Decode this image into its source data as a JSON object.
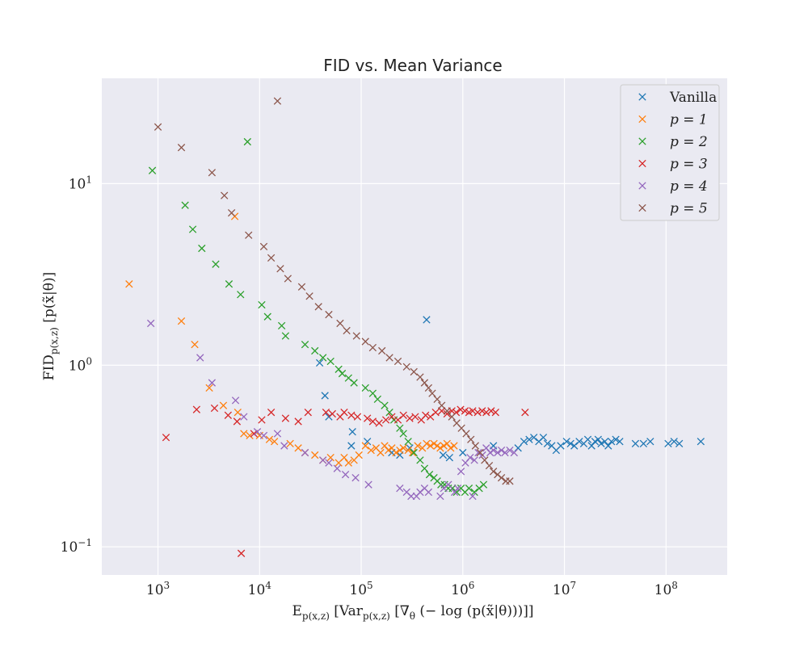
{
  "chart_data": {
    "type": "scatter",
    "title": "FID vs. Mean Variance",
    "xlabel": "E_{p(x,z)} [Var_{p(x,z)} [∇_θ (− log (p(x̃|θ)))]]",
    "ylabel": "FID_{p(x,z)} [p(x̃|θ)]",
    "xscale": "log",
    "yscale": "log",
    "xlim": [
      280,
      400000000
    ],
    "ylim": [
      0.07,
      38
    ],
    "grid": true,
    "legend_position": "top-right",
    "x_ticks": [
      {
        "value": 1000,
        "base": "10",
        "exp": "3"
      },
      {
        "value": 10000,
        "base": "10",
        "exp": "4"
      },
      {
        "value": 100000,
        "base": "10",
        "exp": "5"
      },
      {
        "value": 1000000,
        "base": "10",
        "exp": "6"
      },
      {
        "value": 10000000,
        "base": "10",
        "exp": "7"
      },
      {
        "value": 100000000,
        "base": "10",
        "exp": "8"
      }
    ],
    "y_ticks": [
      {
        "value": 0.1,
        "base": "10",
        "exp": "−1"
      },
      {
        "value": 1,
        "base": "10",
        "exp": "0"
      },
      {
        "value": 10,
        "base": "10",
        "exp": "1"
      }
    ],
    "series": [
      {
        "name": "Vanilla",
        "color": "#1f77b4",
        "points": [
          [
            39000,
            1.03
          ],
          [
            44000,
            0.68
          ],
          [
            48000,
            0.52
          ],
          [
            80000,
            0.36
          ],
          [
            82000,
            0.43
          ],
          [
            115000,
            0.38
          ],
          [
            200000,
            0.33
          ],
          [
            240000,
            0.32
          ],
          [
            300000,
            0.35
          ],
          [
            440000,
            1.78
          ],
          [
            640000,
            0.32
          ],
          [
            740000,
            0.31
          ],
          [
            1000000,
            0.33
          ],
          [
            2000000,
            0.36
          ],
          [
            3500000,
            0.35
          ],
          [
            4000000,
            0.38
          ],
          [
            4500000,
            0.39
          ],
          [
            5000000,
            0.4
          ],
          [
            5600000,
            0.38
          ],
          [
            6200000,
            0.4
          ],
          [
            6800000,
            0.37
          ],
          [
            7500000,
            0.36
          ],
          [
            8300000,
            0.34
          ],
          [
            9200000,
            0.36
          ],
          [
            10500000,
            0.38
          ],
          [
            11500000,
            0.37
          ],
          [
            12500000,
            0.36
          ],
          [
            14000000,
            0.38
          ],
          [
            15500000,
            0.37
          ],
          [
            17000000,
            0.39
          ],
          [
            18500000,
            0.36
          ],
          [
            20000000,
            0.38
          ],
          [
            21500000,
            0.39
          ],
          [
            23000000,
            0.37
          ],
          [
            25000000,
            0.38
          ],
          [
            27000000,
            0.36
          ],
          [
            29000000,
            0.38
          ],
          [
            32000000,
            0.39
          ],
          [
            35000000,
            0.38
          ],
          [
            50000000,
            0.37
          ],
          [
            60000000,
            0.37
          ],
          [
            70000000,
            0.38
          ],
          [
            105000000,
            0.37
          ],
          [
            120000000,
            0.38
          ],
          [
            135000000,
            0.37
          ],
          [
            220000000,
            0.38
          ]
        ]
      },
      {
        "name": "p = 1",
        "color": "#ff7f0e",
        "points": [
          [
            520,
            2.8
          ],
          [
            1700,
            1.75
          ],
          [
            2300,
            1.3
          ],
          [
            3200,
            0.75
          ],
          [
            4400,
            0.6
          ],
          [
            5700,
            6.6
          ],
          [
            6100,
            0.55
          ],
          [
            7000,
            0.42
          ],
          [
            8000,
            0.41
          ],
          [
            10000,
            0.41
          ],
          [
            12500,
            0.39
          ],
          [
            14000,
            0.38
          ],
          [
            20000,
            0.37
          ],
          [
            24000,
            0.35
          ],
          [
            28000,
            0.33
          ],
          [
            35000,
            0.32
          ],
          [
            42000,
            0.3
          ],
          [
            50000,
            0.31
          ],
          [
            60000,
            0.29
          ],
          [
            68000,
            0.31
          ],
          [
            75000,
            0.29
          ],
          [
            85000,
            0.3
          ],
          [
            95000,
            0.32
          ],
          [
            110000,
            0.36
          ],
          [
            125000,
            0.34
          ],
          [
            140000,
            0.35
          ],
          [
            155000,
            0.33
          ],
          [
            170000,
            0.36
          ],
          [
            185000,
            0.34
          ],
          [
            200000,
            0.35
          ],
          [
            220000,
            0.33
          ],
          [
            240000,
            0.34
          ],
          [
            260000,
            0.35
          ],
          [
            290000,
            0.34
          ],
          [
            320000,
            0.33
          ],
          [
            360000,
            0.36
          ],
          [
            400000,
            0.35
          ],
          [
            440000,
            0.37
          ],
          [
            480000,
            0.36
          ],
          [
            520000,
            0.37
          ],
          [
            560000,
            0.36
          ],
          [
            600000,
            0.35
          ],
          [
            650000,
            0.36
          ],
          [
            700000,
            0.37
          ],
          [
            760000,
            0.35
          ],
          [
            820000,
            0.36
          ]
        ]
      },
      {
        "name": "p = 2",
        "color": "#2ca02c",
        "points": [
          [
            880,
            11.8
          ],
          [
            1850,
            7.6
          ],
          [
            2200,
            5.6
          ],
          [
            2700,
            4.4
          ],
          [
            3700,
            3.6
          ],
          [
            5000,
            2.8
          ],
          [
            6500,
            2.45
          ],
          [
            7600,
            17
          ],
          [
            10500,
            2.15
          ],
          [
            12000,
            1.85
          ],
          [
            16500,
            1.65
          ],
          [
            18000,
            1.45
          ],
          [
            28000,
            1.3
          ],
          [
            35000,
            1.2
          ],
          [
            42000,
            1.1
          ],
          [
            50000,
            1.05
          ],
          [
            60000,
            0.95
          ],
          [
            65000,
            0.9
          ],
          [
            75000,
            0.85
          ],
          [
            85000,
            0.8
          ],
          [
            110000,
            0.75
          ],
          [
            130000,
            0.7
          ],
          [
            145000,
            0.65
          ],
          [
            170000,
            0.6
          ],
          [
            190000,
            0.55
          ],
          [
            210000,
            0.5
          ],
          [
            240000,
            0.45
          ],
          [
            260000,
            0.42
          ],
          [
            290000,
            0.38
          ],
          [
            330000,
            0.33
          ],
          [
            380000,
            0.3
          ],
          [
            420000,
            0.27
          ],
          [
            470000,
            0.25
          ],
          [
            520000,
            0.24
          ],
          [
            560000,
            0.23
          ],
          [
            610000,
            0.22
          ],
          [
            660000,
            0.22
          ],
          [
            720000,
            0.21
          ],
          [
            790000,
            0.21
          ],
          [
            870000,
            0.2
          ],
          [
            960000,
            0.21
          ],
          [
            1050000,
            0.2
          ],
          [
            1150000,
            0.21
          ],
          [
            1300000,
            0.2
          ],
          [
            1450000,
            0.21
          ],
          [
            1600000,
            0.22
          ]
        ]
      },
      {
        "name": "p = 3",
        "color": "#d62728",
        "points": [
          [
            1200,
            0.4
          ],
          [
            2400,
            0.57
          ],
          [
            3600,
            0.58
          ],
          [
            4900,
            0.53
          ],
          [
            6000,
            0.49
          ],
          [
            6600,
            0.092
          ],
          [
            8800,
            0.42
          ],
          [
            10500,
            0.5
          ],
          [
            13000,
            0.55
          ],
          [
            18000,
            0.51
          ],
          [
            24000,
            0.49
          ],
          [
            30000,
            0.55
          ],
          [
            45000,
            0.55
          ],
          [
            52000,
            0.54
          ],
          [
            62000,
            0.52
          ],
          [
            68000,
            0.55
          ],
          [
            80000,
            0.53
          ],
          [
            92000,
            0.52
          ],
          [
            115000,
            0.51
          ],
          [
            130000,
            0.49
          ],
          [
            150000,
            0.48
          ],
          [
            175000,
            0.5
          ],
          [
            200000,
            0.52
          ],
          [
            230000,
            0.5
          ],
          [
            260000,
            0.53
          ],
          [
            300000,
            0.51
          ],
          [
            340000,
            0.52
          ],
          [
            390000,
            0.5
          ],
          [
            430000,
            0.53
          ],
          [
            480000,
            0.52
          ],
          [
            540000,
            0.55
          ],
          [
            620000,
            0.56
          ],
          [
            700000,
            0.54
          ],
          [
            780000,
            0.56
          ],
          [
            860000,
            0.55
          ],
          [
            950000,
            0.57
          ],
          [
            1050000,
            0.56
          ],
          [
            1150000,
            0.55
          ],
          [
            1250000,
            0.56
          ],
          [
            1400000,
            0.55
          ],
          [
            1550000,
            0.56
          ],
          [
            1700000,
            0.55
          ],
          [
            1900000,
            0.56
          ],
          [
            2100000,
            0.55
          ],
          [
            4100000,
            0.55
          ]
        ]
      },
      {
        "name": "p = 4",
        "color": "#9467bd",
        "points": [
          [
            850,
            1.7
          ],
          [
            2600,
            1.1
          ],
          [
            3400,
            0.8
          ],
          [
            5800,
            0.64
          ],
          [
            7000,
            0.52
          ],
          [
            9500,
            0.43
          ],
          [
            11000,
            0.41
          ],
          [
            15000,
            0.42
          ],
          [
            17500,
            0.36
          ],
          [
            28000,
            0.33
          ],
          [
            42000,
            0.3
          ],
          [
            48000,
            0.29
          ],
          [
            58000,
            0.27
          ],
          [
            70000,
            0.25
          ],
          [
            88000,
            0.24
          ],
          [
            118000,
            0.22
          ],
          [
            240000,
            0.21
          ],
          [
            280000,
            0.2
          ],
          [
            310000,
            0.19
          ],
          [
            350000,
            0.19
          ],
          [
            380000,
            0.2
          ],
          [
            420000,
            0.21
          ],
          [
            460000,
            0.2
          ],
          [
            600000,
            0.19
          ],
          [
            650000,
            0.21
          ],
          [
            720000,
            0.22
          ],
          [
            830000,
            0.2
          ],
          [
            890000,
            0.21
          ],
          [
            1250000,
            0.19
          ],
          [
            960000,
            0.26
          ],
          [
            1060000,
            0.29
          ],
          [
            1180000,
            0.31
          ],
          [
            1300000,
            0.3
          ],
          [
            1420000,
            0.33
          ],
          [
            1560000,
            0.32
          ],
          [
            1700000,
            0.35
          ],
          [
            1860000,
            0.33
          ],
          [
            2000000,
            0.34
          ],
          [
            2200000,
            0.33
          ],
          [
            2400000,
            0.34
          ],
          [
            2600000,
            0.33
          ],
          [
            2900000,
            0.34
          ],
          [
            3200000,
            0.33
          ]
        ]
      },
      {
        "name": "p = 5",
        "color": "#8c564b",
        "points": [
          [
            1000,
            20.5
          ],
          [
            1700,
            15.8
          ],
          [
            3400,
            11.5
          ],
          [
            4500,
            8.6
          ],
          [
            5300,
            6.9
          ],
          [
            7800,
            5.2
          ],
          [
            11000,
            4.5
          ],
          [
            13000,
            3.9
          ],
          [
            16000,
            3.4
          ],
          [
            19000,
            3
          ],
          [
            26000,
            2.7
          ],
          [
            31000,
            2.4
          ],
          [
            38000,
            2.1
          ],
          [
            48000,
            1.9
          ],
          [
            62000,
            1.7
          ],
          [
            72000,
            1.55
          ],
          [
            90000,
            1.45
          ],
          [
            110000,
            1.35
          ],
          [
            130000,
            1.25
          ],
          [
            160000,
            1.2
          ],
          [
            190000,
            1.1
          ],
          [
            230000,
            1.05
          ],
          [
            280000,
            0.98
          ],
          [
            330000,
            0.92
          ],
          [
            380000,
            0.86
          ],
          [
            420000,
            0.8
          ],
          [
            460000,
            0.75
          ],
          [
            500000,
            0.7
          ],
          [
            560000,
            0.65
          ],
          [
            620000,
            0.6
          ],
          [
            700000,
            0.56
          ],
          [
            780000,
            0.52
          ],
          [
            870000,
            0.48
          ],
          [
            970000,
            0.45
          ],
          [
            1080000,
            0.42
          ],
          [
            1200000,
            0.39
          ],
          [
            1330000,
            0.36
          ],
          [
            1480000,
            0.33
          ],
          [
            1640000,
            0.3
          ],
          [
            1820000,
            0.28
          ],
          [
            2000000,
            0.26
          ],
          [
            2200000,
            0.25
          ],
          [
            2400000,
            0.24
          ],
          [
            2650000,
            0.23
          ],
          [
            2900000,
            0.23
          ],
          [
            15000,
            28.5
          ]
        ]
      }
    ]
  }
}
